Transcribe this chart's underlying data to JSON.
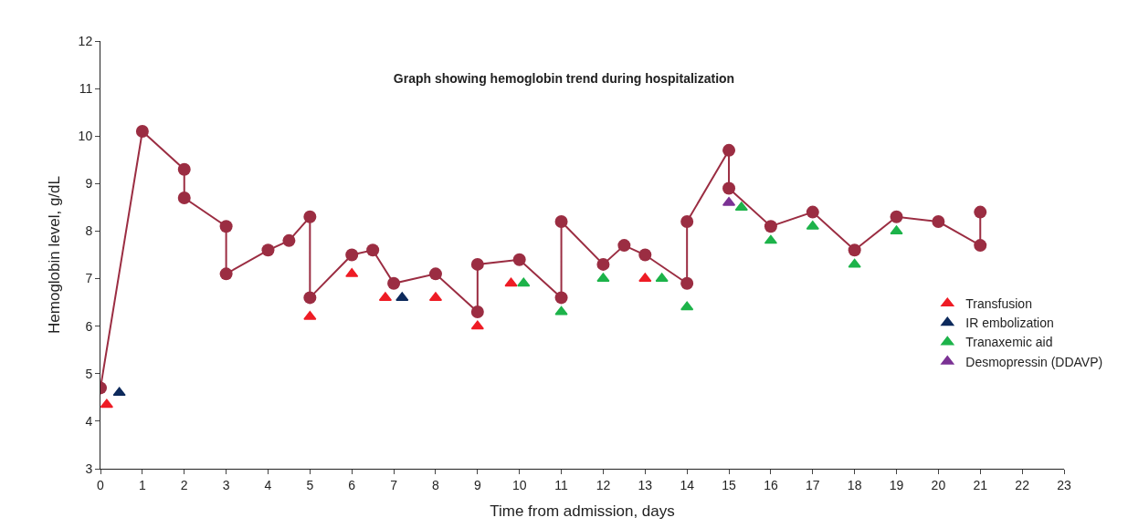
{
  "chart_data": {
    "type": "line",
    "title": "Graph showing hemoglobin trend during hospitalization",
    "xlabel": "Time from admission, days",
    "ylabel": "Hemoglobin level, g/dL",
    "xlim": [
      0,
      23
    ],
    "xticks": [
      0,
      1,
      2,
      3,
      4,
      5,
      6,
      7,
      8,
      9,
      10,
      11,
      12,
      13,
      14,
      15,
      16,
      17,
      18,
      19,
      20,
      21,
      22,
      23
    ],
    "ylim": [
      3,
      12
    ],
    "yticks": [
      3,
      4,
      5,
      6,
      7,
      8,
      9,
      10,
      11,
      12
    ],
    "grid": false,
    "legend": "right",
    "series": [
      {
        "marker": "circle",
        "color": "#9b2d42",
        "x": [
          0,
          1,
          2,
          2,
          3,
          3,
          4,
          4.5,
          5,
          5,
          6,
          6.5,
          7,
          8,
          9,
          9,
          10,
          11,
          11,
          12,
          12.5,
          13,
          14,
          14,
          15,
          15,
          16,
          17,
          18,
          19,
          20,
          21,
          21
        ],
        "values": [
          4.7,
          10.1,
          9.3,
          8.7,
          8.1,
          7.1,
          7.6,
          7.8,
          8.3,
          6.6,
          7.5,
          7.6,
          6.9,
          7.1,
          6.3,
          7.3,
          7.4,
          6.6,
          8.2,
          7.3,
          7.7,
          7.5,
          6.9,
          8.2,
          9.7,
          8.9,
          8.1,
          8.4,
          7.6,
          8.3,
          8.2,
          7.7,
          8.4
        ]
      },
      {
        "type": "scatter",
        "marker": "triangle",
        "name": "Transfusion",
        "color": "#ee1c25",
        "x": [
          0.15,
          5,
          6,
          6.8,
          8,
          9,
          9.8,
          13
        ],
        "values": [
          4.35,
          6.2,
          7.1,
          6.6,
          6.6,
          6.0,
          6.9,
          7.0
        ]
      },
      {
        "type": "scatter",
        "marker": "triangle",
        "name": "IR embolization",
        "color": "#0d2a5c",
        "x": [
          0.45,
          7.2
        ],
        "values": [
          4.6,
          6.6
        ]
      },
      {
        "type": "scatter",
        "marker": "triangle",
        "name": "Tranaxemic aid",
        "color": "#1db34a",
        "x": [
          10.1,
          11,
          12,
          13.4,
          14,
          15.3,
          16,
          17,
          18,
          19
        ],
        "values": [
          6.9,
          6.3,
          7.0,
          7.0,
          6.4,
          8.5,
          7.8,
          8.1,
          7.3,
          8.0
        ]
      },
      {
        "type": "scatter",
        "marker": "triangle",
        "name": "Desmopressin (DDAVP)",
        "color": "#7b3294",
        "x": [
          15
        ],
        "values": [
          8.6
        ]
      }
    ]
  }
}
